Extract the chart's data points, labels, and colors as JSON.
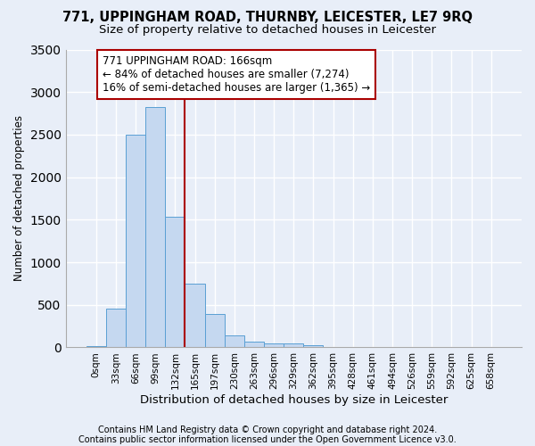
{
  "title": "771, UPPINGHAM ROAD, THURNBY, LEICESTER, LE7 9RQ",
  "subtitle": "Size of property relative to detached houses in Leicester",
  "xlabel": "Distribution of detached houses by size in Leicester",
  "ylabel": "Number of detached properties",
  "bar_labels": [
    "0sqm",
    "33sqm",
    "66sqm",
    "99sqm",
    "132sqm",
    "165sqm",
    "197sqm",
    "230sqm",
    "263sqm",
    "296sqm",
    "329sqm",
    "362sqm",
    "395sqm",
    "428sqm",
    "461sqm",
    "494sqm",
    "526sqm",
    "559sqm",
    "592sqm",
    "625sqm",
    "658sqm"
  ],
  "bar_values": [
    20,
    460,
    2500,
    2820,
    1530,
    750,
    395,
    140,
    65,
    50,
    50,
    30,
    5,
    5,
    0,
    0,
    0,
    0,
    0,
    0,
    0
  ],
  "bar_color": "#c5d8f0",
  "bar_edge_color": "#5a9fd4",
  "background_color": "#e8eef8",
  "grid_color": "#ffffff",
  "ylim": [
    0,
    3500
  ],
  "vline_x": 5,
  "vline_color": "#aa0000",
  "annotation_line1": "771 UPPINGHAM ROAD: 166sqm",
  "annotation_line2": "← 84% of detached houses are smaller (7,274)",
  "annotation_line3": "16% of semi-detached houses are larger (1,365) →",
  "footer1": "Contains HM Land Registry data © Crown copyright and database right 2024.",
  "footer2": "Contains public sector information licensed under the Open Government Licence v3.0.",
  "title_fontsize": 10.5,
  "subtitle_fontsize": 9.5,
  "xlabel_fontsize": 9.5,
  "ylabel_fontsize": 8.5,
  "tick_fontsize": 7.5,
  "annotation_fontsize": 8.5,
  "footer_fontsize": 7.0
}
